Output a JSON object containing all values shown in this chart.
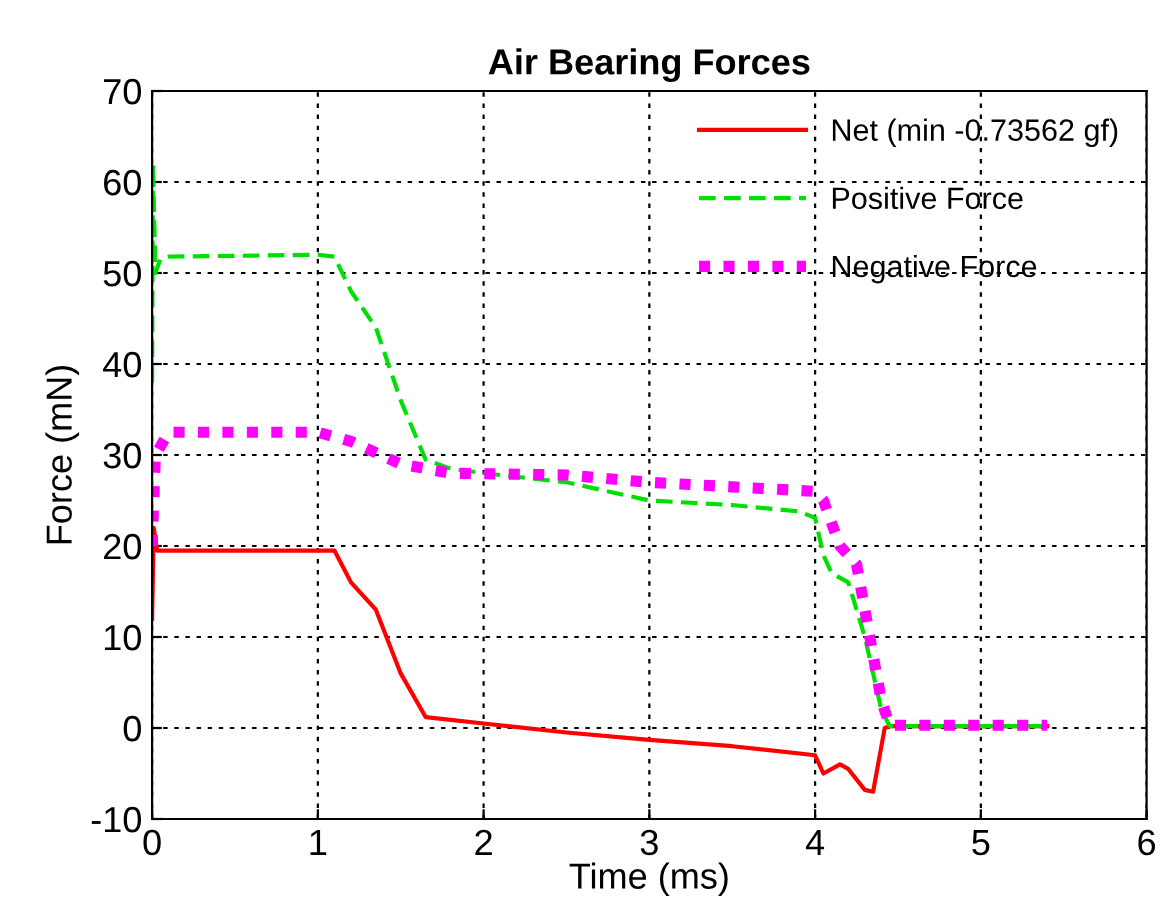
{
  "chart_data": {
    "type": "line",
    "title": "Air Bearing Forces",
    "xlabel": "Time (ms)",
    "ylabel": "Force (mN)",
    "xlim": [
      0,
      6
    ],
    "xticks": [
      0,
      1,
      2,
      3,
      4,
      5,
      6
    ],
    "ylim": [
      -10,
      70
    ],
    "yticks": [
      -10,
      0,
      10,
      20,
      30,
      40,
      50,
      60,
      70
    ],
    "grid": true,
    "legend": "top right",
    "series": [
      {
        "name": "Net (min -0.73562 gf)",
        "color": "#ff0000",
        "line_style": "solid",
        "x": [
          0,
          0.01,
          0.03,
          1.1,
          1.2,
          1.35,
          1.5,
          1.65,
          2.0,
          2.5,
          3.0,
          3.5,
          4.0,
          4.05,
          4.15,
          4.2,
          4.3,
          4.35,
          4.42,
          4.45,
          5.4
        ],
        "values": [
          12,
          22,
          19.5,
          19.5,
          16,
          13,
          6,
          1.2,
          0.5,
          -0.5,
          -1.3,
          -2,
          -3,
          -5,
          -4,
          -4.5,
          -6.8,
          -7,
          0,
          0.2,
          0.2
        ]
      },
      {
        "name": "Positive Force",
        "color": "#00e000",
        "line_style": "dashed",
        "x": [
          0,
          0.005,
          0.02,
          0.05,
          0.1,
          1.0,
          1.1,
          1.2,
          1.35,
          1.5,
          1.65,
          1.8,
          2.0,
          2.5,
          3.0,
          3.5,
          3.9,
          4.0,
          4.05,
          4.1,
          4.2,
          4.3,
          4.4,
          4.45,
          5.4
        ],
        "values": [
          38,
          62,
          50,
          51.5,
          51.8,
          52,
          51.8,
          48,
          44,
          36,
          29.5,
          28.5,
          28,
          27,
          25,
          24.5,
          23.8,
          23.1,
          19,
          17,
          16,
          10,
          2,
          0.2,
          0.2
        ]
      },
      {
        "name": "Negative Force",
        "color": "#ff00ff",
        "line_style": "dotted",
        "x": [
          0,
          0.02,
          0.1,
          1.0,
          1.2,
          1.5,
          1.8,
          2.5,
          3.0,
          3.5,
          4.0,
          4.05,
          4.15,
          4.25,
          4.3,
          4.4,
          4.45,
          5.4
        ],
        "values": [
          20,
          30,
          32.5,
          32.5,
          31.5,
          29,
          28,
          27.8,
          27,
          26.5,
          26,
          25,
          20,
          18,
          13,
          3,
          0.3,
          0.3
        ]
      }
    ]
  }
}
